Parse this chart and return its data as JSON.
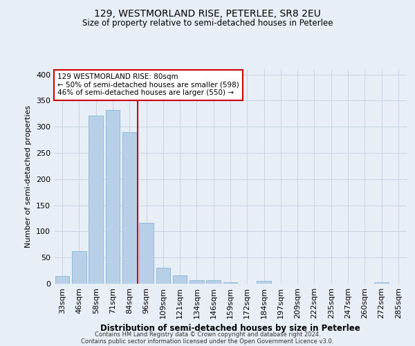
{
  "title": "129, WESTMORLAND RISE, PETERLEE, SR8 2EU",
  "subtitle": "Size of property relative to semi-detached houses in Peterlee",
  "xlabel": "Distribution of semi-detached houses by size in Peterlee",
  "ylabel": "Number of semi-detached properties",
  "bar_labels": [
    "33sqm",
    "46sqm",
    "58sqm",
    "71sqm",
    "84sqm",
    "96sqm",
    "109sqm",
    "121sqm",
    "134sqm",
    "146sqm",
    "159sqm",
    "172sqm",
    "184sqm",
    "197sqm",
    "209sqm",
    "222sqm",
    "235sqm",
    "247sqm",
    "260sqm",
    "272sqm",
    "285sqm"
  ],
  "bar_values": [
    15,
    62,
    321,
    332,
    290,
    116,
    31,
    16,
    7,
    6,
    3,
    0,
    5,
    0,
    0,
    0,
    0,
    0,
    0,
    3,
    0
  ],
  "bar_color": "#b8cfe8",
  "bar_edge_color": "#7aaad0",
  "annotation_title": "129 WESTMORLAND RISE: 80sqm",
  "annotation_line1": "← 50% of semi-detached houses are smaller (598)",
  "annotation_line2": "46% of semi-detached houses are larger (550) →",
  "annotation_box_color": "#ffffff",
  "annotation_box_edge": "#cc0000",
  "vline_color": "#cc0000",
  "grid_color": "#c8d4e4",
  "background_color": "#e8eef6",
  "ylim": [
    0,
    410
  ],
  "yticks": [
    0,
    50,
    100,
    150,
    200,
    250,
    300,
    350,
    400
  ],
  "footer1": "Contains HM Land Registry data © Crown copyright and database right 2024.",
  "footer2": "Contains public sector information licensed under the Open Government Licence v3.0."
}
